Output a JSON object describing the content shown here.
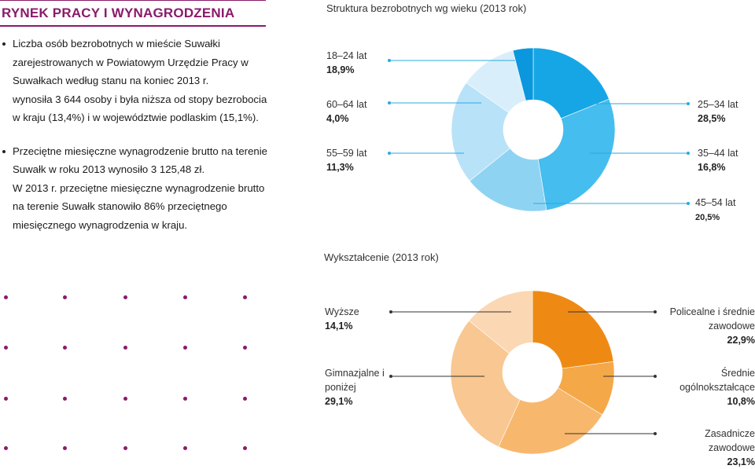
{
  "header": {
    "title": "RYNEK PRACY I WYNAGRODZENIA"
  },
  "text": {
    "p1": "Liczba osób bezrobotnych w mieście Suwałki zarejestrowanych w Powiatowym Urzędzie Pracy w Suwałkach według stanu na koniec 2013 r.",
    "p2": "wynosiła 3 644 osoby i była niższa od stopy bezrobocia w kraju (13,4%) i w województwie podlaskim (15,1%).",
    "p3": "Przeciętne miesięczne wynagrodzenie brutto na terenie Suwałk w roku 2013 wynosiło 3 125,48 zł.",
    "p4": "W 2013 r. przeciętne miesięczne wynagrodzenie brutto na terenie Suwałk stanowiło 86% przeciętnego miesięcznego wynagrodzenia w kraju."
  },
  "colors": {
    "brand": "#8a1a6b"
  },
  "chart_data": [
    {
      "type": "pie",
      "title": "Struktura bezrobotnych wg wieku (2013 rok)",
      "slices": [
        {
          "label": "18–24 lat",
          "value_label": "18,9%",
          "value": 18.9,
          "color": "#16a6e6"
        },
        {
          "label": "25–34 lat",
          "value_label": "28,5%",
          "value": 28.5,
          "color": "#45bdee"
        },
        {
          "label": "35–44 lat",
          "value_label": "16,8%",
          "value": 16.8,
          "color": "#8fd3f3"
        },
        {
          "label": "45–54 lat",
          "value_label": "20,5%",
          "value": 20.5,
          "color": "#b8e2f8"
        },
        {
          "label": "55–59 lat",
          "value_label": "11,3%",
          "value": 11.3,
          "color": "#d9eefb"
        },
        {
          "label": "60–64 lat",
          "value_label": "4,0%",
          "value": 4.0,
          "color": "#0a97dd"
        }
      ]
    },
    {
      "type": "pie",
      "title": "Wykształcenie (2013 rok)",
      "slices": [
        {
          "label": "Policealne i średnie zawodowe",
          "value_label": "22,9%",
          "value": 22.9,
          "color": "#ee8a14"
        },
        {
          "label": "Średnie ogólnokształcące",
          "value_label": "10,8%",
          "value": 10.8,
          "color": "#f4a848"
        },
        {
          "label": "Zasadnicze zawodowe",
          "value_label": "23,1%",
          "value": 23.1,
          "color": "#f7b86e"
        },
        {
          "label": "Gimnazjalne i poniżej",
          "value_label": "29,1%",
          "value": 29.1,
          "color": "#f9c792"
        },
        {
          "label": "Wyższe",
          "value_label": "14,1%",
          "value": 14.1,
          "color": "#fbd7b3"
        }
      ]
    }
  ]
}
